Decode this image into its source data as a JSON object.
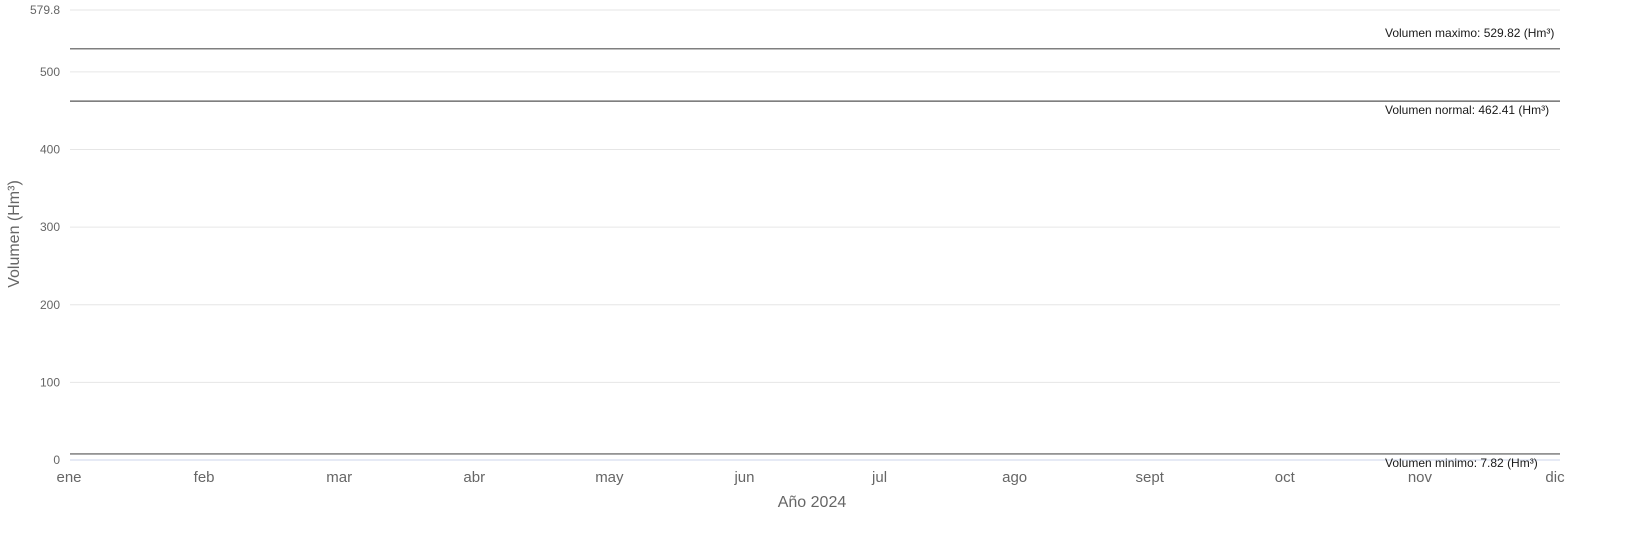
{
  "chart_data": {
    "type": "line",
    "title": "",
    "xlabel": "Año 2024",
    "ylabel": "Volumen (Hm³)",
    "x_categories": [
      "ene",
      "feb",
      "mar",
      "abr",
      "may",
      "jun",
      "jul",
      "ago",
      "sept",
      "oct",
      "nov",
      "dic"
    ],
    "y_ticks": [
      "0",
      "100",
      "200",
      "300",
      "400",
      "500",
      "579.8"
    ],
    "ylim": [
      0,
      579.8
    ],
    "grid": true,
    "series": [],
    "reference_lines": [
      {
        "label": "Volumen maximo: 529.82 (Hm³)",
        "value": 529.82,
        "label_position": "above"
      },
      {
        "label": "Volumen normal: 462.41 (Hm³)",
        "value": 462.41,
        "label_position": "below"
      },
      {
        "label": "Volumen minimo: 7.82 (Hm³)",
        "value": 7.82,
        "label_position": "below"
      }
    ]
  }
}
